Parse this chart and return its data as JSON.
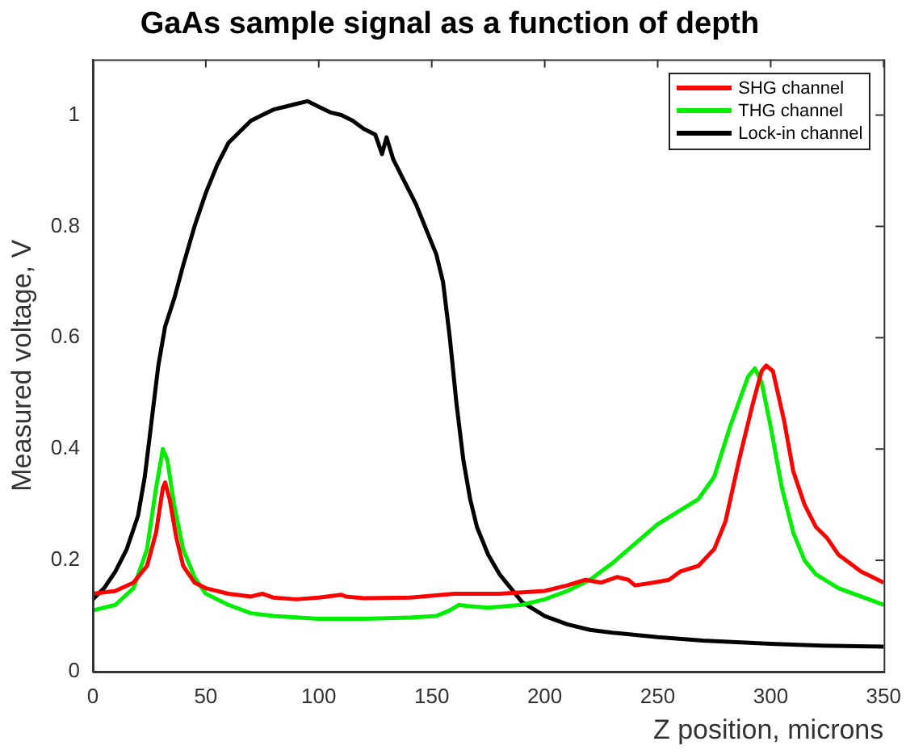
{
  "chart_data": {
    "type": "line",
    "title": "GaAs sample signal as a function of depth",
    "xlabel": "Z position, microns",
    "ylabel": "Measured voltage, V",
    "xlim": [
      0,
      350
    ],
    "xticks": [
      0,
      50,
      100,
      150,
      200,
      250,
      300,
      350
    ],
    "ylim": [
      0,
      1.1
    ],
    "yticks": [
      0,
      0.2,
      0.4,
      0.6,
      0.8,
      1
    ],
    "legend": "top right",
    "grid": false,
    "marker": "none",
    "line_style": "solid",
    "series": [
      {
        "name": "SHG channel",
        "color": "#ff0000",
        "x": [
          0,
          10,
          18,
          24,
          28,
          31,
          32,
          34,
          37,
          40,
          45,
          50,
          60,
          70,
          75,
          80,
          90,
          100,
          110,
          112,
          120,
          140,
          160,
          180,
          200,
          210,
          218,
          225,
          232,
          237,
          240,
          248,
          255,
          260,
          268,
          275,
          280,
          286,
          292,
          296,
          298,
          301,
          306,
          310,
          315,
          320,
          325,
          330,
          335,
          340,
          345,
          350
        ],
        "values": [
          0.14,
          0.145,
          0.16,
          0.19,
          0.25,
          0.33,
          0.34,
          0.31,
          0.24,
          0.19,
          0.16,
          0.15,
          0.14,
          0.135,
          0.14,
          0.133,
          0.13,
          0.133,
          0.138,
          0.135,
          0.132,
          0.133,
          0.14,
          0.14,
          0.145,
          0.155,
          0.165,
          0.16,
          0.17,
          0.165,
          0.155,
          0.16,
          0.165,
          0.18,
          0.19,
          0.22,
          0.27,
          0.38,
          0.48,
          0.54,
          0.55,
          0.54,
          0.45,
          0.36,
          0.3,
          0.26,
          0.24,
          0.21,
          0.195,
          0.18,
          0.17,
          0.16
        ]
      },
      {
        "name": "THG channel",
        "color": "#00ee00",
        "x": [
          0,
          10,
          18,
          24,
          28,
          31,
          33,
          36,
          40,
          45,
          50,
          60,
          70,
          80,
          100,
          120,
          140,
          152,
          158,
          162,
          166,
          175,
          190,
          200,
          210,
          220,
          230,
          240,
          250,
          260,
          268,
          275,
          282,
          290,
          293,
          296,
          300,
          305,
          310,
          315,
          320,
          330,
          340,
          350
        ],
        "values": [
          0.11,
          0.12,
          0.15,
          0.22,
          0.33,
          0.4,
          0.38,
          0.3,
          0.22,
          0.17,
          0.14,
          0.12,
          0.105,
          0.1,
          0.095,
          0.095,
          0.097,
          0.1,
          0.11,
          0.12,
          0.118,
          0.115,
          0.12,
          0.13,
          0.145,
          0.165,
          0.195,
          0.23,
          0.265,
          0.29,
          0.31,
          0.35,
          0.44,
          0.53,
          0.545,
          0.52,
          0.44,
          0.33,
          0.25,
          0.2,
          0.175,
          0.15,
          0.135,
          0.12
        ]
      },
      {
        "name": "Lock-in channel",
        "color": "#000000",
        "x": [
          0,
          5,
          10,
          15,
          20,
          23,
          26,
          29,
          32,
          36,
          40,
          45,
          50,
          55,
          60,
          65,
          70,
          75,
          80,
          85,
          90,
          95,
          100,
          105,
          110,
          115,
          120,
          125,
          128,
          130,
          133,
          138,
          143,
          148,
          152,
          155,
          158,
          161,
          164,
          167,
          170,
          175,
          180,
          185,
          190,
          200,
          210,
          220,
          230,
          250,
          270,
          300,
          320,
          350
        ],
        "values": [
          0.13,
          0.15,
          0.18,
          0.22,
          0.28,
          0.35,
          0.45,
          0.55,
          0.62,
          0.67,
          0.73,
          0.8,
          0.86,
          0.91,
          0.95,
          0.97,
          0.99,
          1.0,
          1.01,
          1.015,
          1.02,
          1.025,
          1.015,
          1.005,
          1.0,
          0.99,
          0.975,
          0.965,
          0.93,
          0.96,
          0.92,
          0.88,
          0.84,
          0.79,
          0.75,
          0.7,
          0.6,
          0.48,
          0.38,
          0.31,
          0.26,
          0.21,
          0.175,
          0.15,
          0.125,
          0.1,
          0.085,
          0.075,
          0.07,
          0.062,
          0.056,
          0.05,
          0.047,
          0.045
        ]
      }
    ]
  }
}
